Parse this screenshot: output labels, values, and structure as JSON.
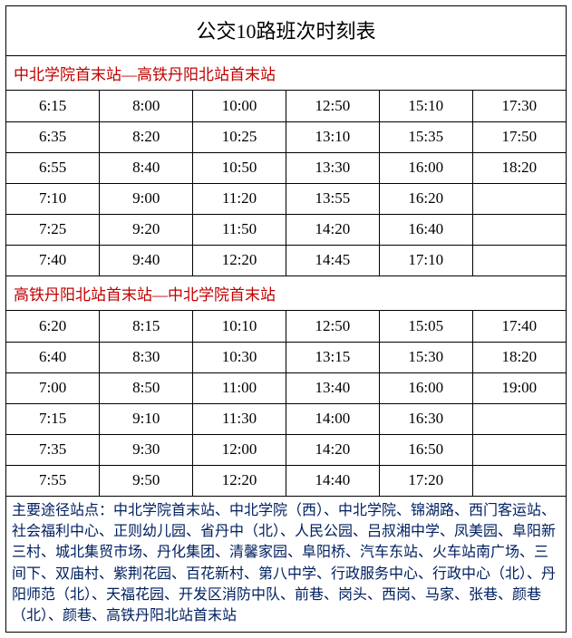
{
  "colors": {
    "header_text": "#c00000",
    "notes_text": "#002060",
    "body_text": "#000000",
    "border": "#000000",
    "background": "#ffffff"
  },
  "title": "公交10路班次时刻表",
  "sections": [
    {
      "header": "中北学院首末站—高铁丹阳北站首末站",
      "rows": [
        [
          "6:15",
          "8:00",
          "10:00",
          "12:50",
          "15:10",
          "17:30"
        ],
        [
          "6:35",
          "8:20",
          "10:25",
          "13:10",
          "15:35",
          "17:50"
        ],
        [
          "6:55",
          "8:40",
          "10:50",
          "13:30",
          "16:00",
          "18:20"
        ],
        [
          "7:10",
          "9:00",
          "11:20",
          "13:55",
          "16:20",
          ""
        ],
        [
          "7:25",
          "9:20",
          "11:50",
          "14:20",
          "16:40",
          ""
        ],
        [
          "7:40",
          "9:40",
          "12:20",
          "14:45",
          "17:10",
          ""
        ]
      ]
    },
    {
      "header": "高铁丹阳北站首末站—中北学院首末站",
      "rows": [
        [
          "6:20",
          "8:15",
          "10:10",
          "12:50",
          "15:05",
          "17:40"
        ],
        [
          "6:40",
          "8:30",
          "10:30",
          "13:15",
          "15:30",
          "18:20"
        ],
        [
          "7:00",
          "8:50",
          "11:00",
          "13:40",
          "16:00",
          "19:00"
        ],
        [
          "7:15",
          "9:10",
          "11:30",
          "14:00",
          "16:30",
          ""
        ],
        [
          "7:35",
          "9:30",
          "12:00",
          "14:20",
          "16:50",
          ""
        ],
        [
          "7:55",
          "9:50",
          "12:20",
          "14:40",
          "17:20",
          ""
        ]
      ]
    }
  ],
  "notes": "主要途径站点：中北学院首末站、中北学院（西）、中北学院、锦湖路、西门客运站、社会福利中心、正则幼儿园、省丹中（北）、人民公园、吕叔湘中学、凤美园、阜阳新三村、城北集贸市场、丹化集团、清馨家园、阜阳桥、汽车东站、火车站南广场、三间下、双庙村、紫荆花园、百花新村、第八中学、行政服务中心、行政中心（北）、丹阳师范（北）、天福花园、开发区消防中队、前巷、岗头、西岗、马家、张巷、颜巷（北）、颜巷、高铁丹阳北站首末站"
}
